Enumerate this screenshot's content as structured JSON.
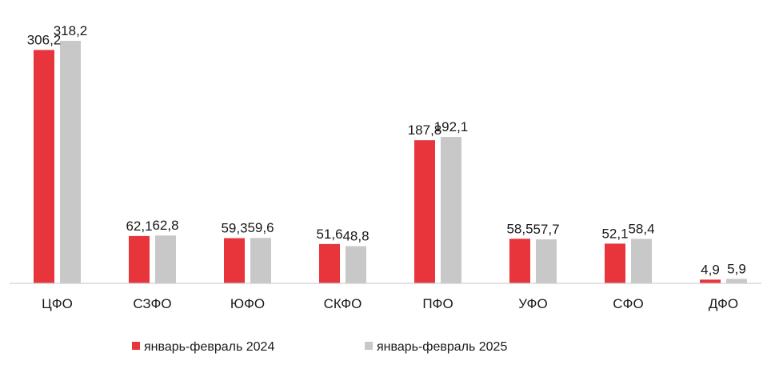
{
  "chart_data": {
    "type": "bar",
    "title": "",
    "xlabel": "",
    "ylabel": "",
    "categories": [
      "ЦФО",
      "СЗФО",
      "ЮФО",
      "СКФО",
      "ПФО",
      "УФО",
      "СФО",
      "ДФО"
    ],
    "value_labels": [
      [
        "306,2",
        "62,1",
        "59,3",
        "51,6",
        "187,8",
        "58,5",
        "52,1",
        "4,9"
      ],
      [
        "318,2",
        "62,8",
        "59,6",
        "48,8",
        "192,1",
        "57,7",
        "58,4",
        "5,9"
      ]
    ],
    "series": [
      {
        "name": "январь-февраль 2024",
        "color": "#e8343b",
        "values": [
          306.2,
          62.1,
          59.3,
          51.6,
          187.8,
          58.5,
          52.1,
          4.9
        ]
      },
      {
        "name": "январь-февраль 2025",
        "color": "#c8c8c8",
        "values": [
          318.2,
          62.8,
          59.6,
          48.8,
          192.1,
          57.7,
          58.4,
          5.9
        ]
      }
    ],
    "ylim": [
      0,
      318.2
    ],
    "grid": false,
    "legend_position": "bottom-center"
  }
}
